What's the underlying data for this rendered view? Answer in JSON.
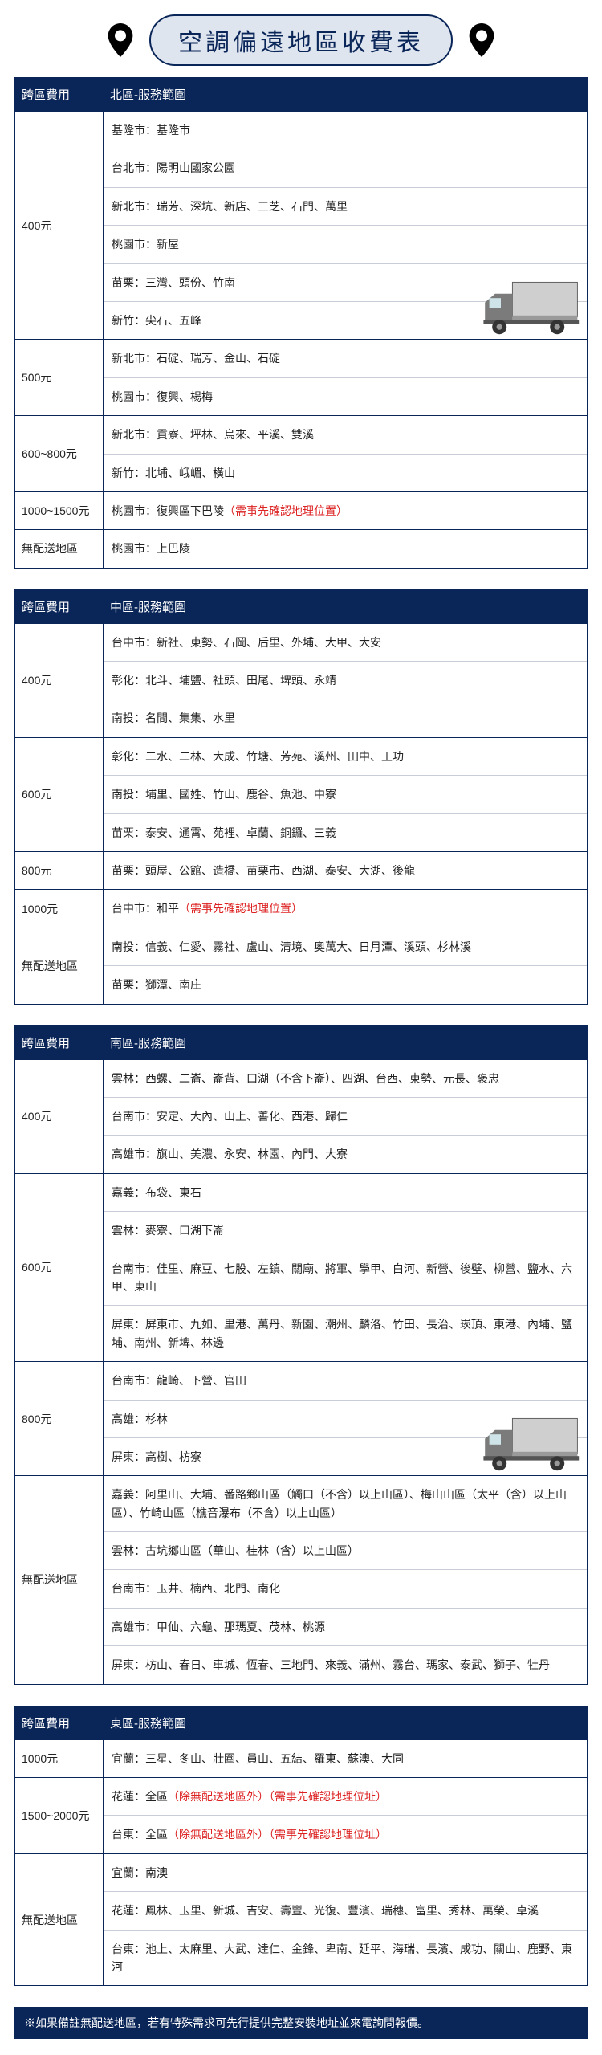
{
  "title": "空調偏遠地區收費表",
  "colors": {
    "primary": "#0a2659",
    "pill_bg": "#dfe5ef",
    "warn": "#d22222",
    "truck_body": "#cfcfcf",
    "truck_cab": "#7b7b7b",
    "border_soft": "#c8cdd7"
  },
  "columns": {
    "fee": "跨區費用"
  },
  "sections": [
    {
      "region_header": "北區-服務範圍",
      "truckRow": 0,
      "rows": [
        {
          "fee": "400元",
          "areas": [
            "基隆市：基隆市",
            "台北市：陽明山國家公園",
            "新北市：瑞芳、深坑、新店、三芝、石門、萬里",
            "桃園市：新屋",
            "苗栗：三灣、頭份、竹南",
            "新竹：尖石、五峰"
          ]
        },
        {
          "fee": "500元",
          "areas": [
            "新北市：石碇、瑞芳、金山、石碇",
            "桃園市：復興、楊梅"
          ]
        },
        {
          "fee": "600~800元",
          "areas": [
            "新北市：貢寮、坪林、烏來、平溪、雙溪",
            "新竹：北埔、峨嵋、橫山"
          ]
        },
        {
          "fee": "1000~1500元",
          "areas": [
            "桃園市：復興區下巴陵<span class=\"warn\">（需事先確認地理位置）</span>"
          ]
        },
        {
          "fee": "無配送地區",
          "areas": [
            "桃園市：上巴陵"
          ]
        }
      ]
    },
    {
      "region_header": "中區-服務範圍",
      "rows": [
        {
          "fee": "400元",
          "areas": [
            "台中市：新社、東勢、石岡、后里、外埔、大甲、大安",
            "彰化：北斗、埔鹽、社頭、田尾、埤頭、永靖",
            "南投：名間、集集、水里"
          ]
        },
        {
          "fee": "600元",
          "areas": [
            "彰化：二水、二林、大成、竹塘、芳苑、溪州、田中、王功",
            "南投：埔里、國姓、竹山、鹿谷、魚池、中寮",
            "苗栗：泰安、通霄、苑裡、卓蘭、銅鑼、三義"
          ]
        },
        {
          "fee": "800元",
          "areas": [
            "苗栗：頭屋、公館、造橋、苗栗市、西湖、泰安、大湖、後龍"
          ]
        },
        {
          "fee": "1000元",
          "areas": [
            "台中市：和平<span class=\"warn\">（需事先確認地理位置）</span>"
          ]
        },
        {
          "fee": "無配送地區",
          "areas": [
            "南投：信義、仁愛、霧社、盧山、清境、奧萬大、日月潭、溪頭、杉林溪",
            "苗栗：獅潭、南庄"
          ]
        }
      ]
    },
    {
      "region_header": "南區-服務範圍",
      "truckRow": 2,
      "rows": [
        {
          "fee": "400元",
          "areas": [
            "雲林：西螺、二崙、崙背、口湖（不含下崙）、四湖、台西、東勢、元長、褒忠",
            "台南市：安定、大內、山上、善化、西港、歸仁",
            "高雄市：旗山、美濃、永安、林園、內門、大寮"
          ]
        },
        {
          "fee": "600元",
          "areas": [
            "嘉義：布袋、東石",
            "雲林：麥寮、口湖下崙",
            "台南市：佳里、麻豆、七股、左鎮、關廟、將軍、學甲、白河、新營、後壁、柳營、鹽水、六甲、東山",
            "屏東：屏東市、九如、里港、萬丹、新園、潮州、麟洛、竹田、長治、崁頂、東港、內埔、鹽埔、南州、新埤、林邊"
          ]
        },
        {
          "fee": "800元",
          "areas": [
            "台南市：龍崎、下營、官田",
            "高雄：杉林",
            "屏東：高樹、枋寮"
          ]
        },
        {
          "fee": "無配送地區",
          "areas": [
            "嘉義：阿里山、大埔、番路鄉山區（觸口（不含）以上山區）、梅山山區（太平（含）以上山區）、竹崎山區（樵音瀑布（不含）以上山區）",
            "雲林：古坑鄉山區（華山、桂林（含）以上山區）",
            "台南市：玉井、楠西、北門、南化",
            "高雄市：甲仙、六龜、那瑪夏、茂林、桃源",
            "屏東：枋山、春日、車城、恆春、三地門、來義、滿州、霧台、瑪家、泰武、獅子、牡丹"
          ]
        }
      ]
    },
    {
      "region_header": "東區-服務範圍",
      "rows": [
        {
          "fee": "1000元",
          "areas": [
            "宜蘭：三星、冬山、壯圍、員山、五結、羅東、蘇澳、大同"
          ]
        },
        {
          "fee": "1500~2000元",
          "areas": [
            "花蓮：全區<span class=\"warn\">（除無配送地區外）（需事先確認地理位址）</span>",
            "台東：全區<span class=\"warn\">（除無配送地區外）（需事先確認地理位址）</span>"
          ]
        },
        {
          "fee": "無配送地區",
          "areas": [
            "宜蘭：南澳",
            "花蓮：鳳林、玉里、新城、吉安、壽豐、光復、豐濱、瑞穗、富里、秀林、萬榮、卓溪",
            "台東：池上、太麻里、大武、達仁、金鋒、卑南、延平、海瑞、長濱、成功、關山、鹿野、東河"
          ]
        }
      ]
    }
  ],
  "footnote": "※如果備註無配送地區，若有特殊需求可先行提供完整安裝地址並來電詢問報價。"
}
